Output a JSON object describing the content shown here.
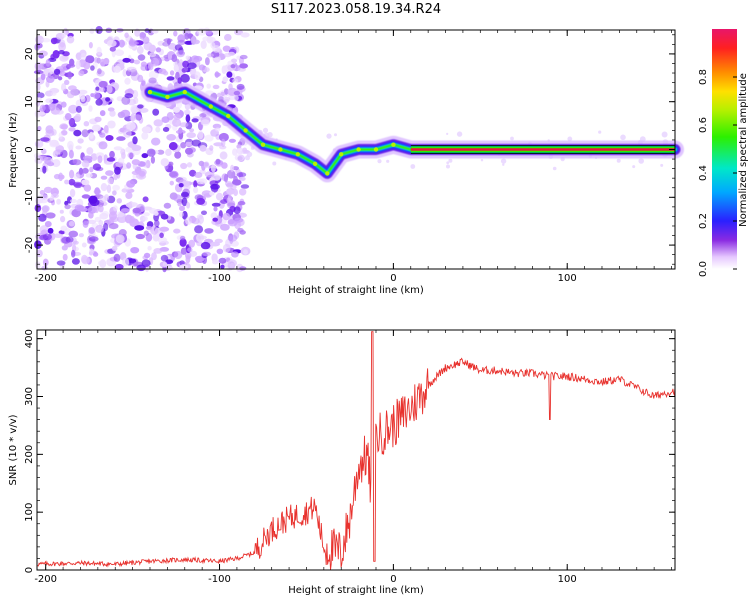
{
  "title": "S117.2023.058.19.34.R24",
  "colors": {
    "snr_line": "#e8322e",
    "axis": "#000000",
    "spectrum_ridge": "#e8163a"
  },
  "chart_data": [
    {
      "type": "heatmap",
      "xlabel": "Height of straight line (km)",
      "ylabel": "Frequency (Hz)",
      "xlim": [
        -205,
        162
      ],
      "ylim": [
        -25,
        25
      ],
      "x_ticks": [
        -200,
        -100,
        0,
        100
      ],
      "y_ticks": [
        -20,
        -10,
        0,
        10,
        20
      ],
      "grid": false,
      "colorbar": {
        "label": "Normalized spectral amplitude",
        "range": [
          0,
          1
        ],
        "ticks": [
          0.0,
          0.2,
          0.4,
          0.6,
          0.8
        ],
        "colormap": "rainbow-white-low"
      },
      "ridge": {
        "x": [
          -140,
          -130,
          -120,
          -105,
          -95,
          -85,
          -75,
          -65,
          -55,
          -45,
          -38,
          -30,
          -20,
          -10,
          0,
          10,
          50,
          100,
          162
        ],
        "y": [
          12,
          11,
          12,
          9,
          7,
          4,
          1,
          0,
          -1,
          -3,
          -5,
          -1,
          0,
          0,
          1,
          0,
          0,
          0,
          0
        ]
      },
      "noise_region_x": [
        -205,
        -85
      ]
    },
    {
      "type": "line",
      "xlabel": "Height of straight line (km)",
      "ylabel": "SNR (10 * v/v)",
      "xlim": [
        -205,
        162
      ],
      "ylim": [
        0,
        415
      ],
      "x_ticks": [
        -200,
        -100,
        0,
        100
      ],
      "y_ticks": [
        0,
        100,
        200,
        300,
        400
      ],
      "grid": false,
      "series": [
        {
          "x": [
            -205,
            -180,
            -160,
            -140,
            -120,
            -100,
            -90,
            -80,
            -70,
            -60,
            -50,
            -45,
            -40,
            -30,
            -25,
            -20,
            -15,
            -12,
            -10,
            -5,
            0,
            10,
            20,
            30,
            40,
            50,
            60,
            70,
            80,
            90,
            100,
            110,
            120,
            130,
            140,
            150,
            155,
            162
          ],
          "y": [
            10,
            12,
            10,
            15,
            18,
            15,
            20,
            30,
            70,
            90,
            100,
            110,
            40,
            30,
            90,
            180,
            200,
            100,
            230,
            240,
            250,
            280,
            320,
            350,
            360,
            345,
            345,
            340,
            340,
            335,
            335,
            330,
            325,
            330,
            315,
            300,
            305,
            310
          ]
        }
      ]
    }
  ]
}
